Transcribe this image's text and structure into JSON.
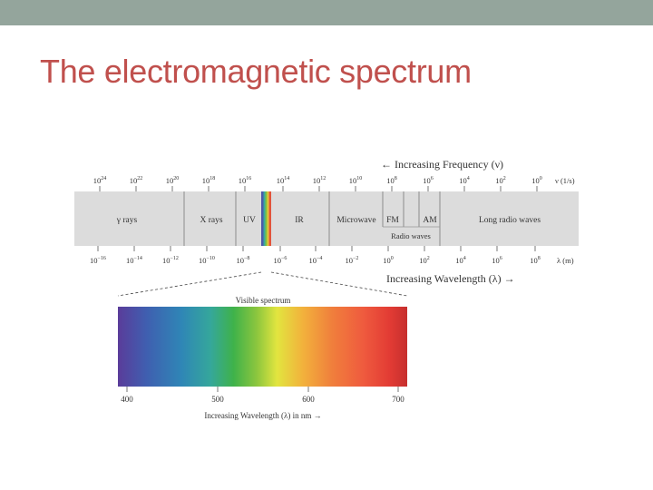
{
  "colors": {
    "topbar": "#94a59c",
    "title": "#c0504d",
    "band": "#dcdcdc",
    "spectrum_stops": [
      "#5a3c9a",
      "#3f5fb0",
      "#2f86b6",
      "#35a79b",
      "#3fb24a",
      "#8cc63e",
      "#e2e53f",
      "#f2b13c",
      "#f07f3c",
      "#ef5a3e",
      "#e23b34",
      "#c62f2e"
    ]
  },
  "slide": {
    "title": "The electromagnetic spectrum"
  },
  "diagram": {
    "frequency_label": "← Increasing Frequency (ν)",
    "wavelength_label": "Increasing Wavelength (λ) →",
    "frequency_unit": "ν (1/s)",
    "wavelength_unit": "λ (m)",
    "frequency_ticks": [
      {
        "base": "10",
        "exp": "24"
      },
      {
        "base": "10",
        "exp": "22"
      },
      {
        "base": "10",
        "exp": "20"
      },
      {
        "base": "10",
        "exp": "18"
      },
      {
        "base": "10",
        "exp": "16"
      },
      {
        "base": "10",
        "exp": "14"
      },
      {
        "base": "10",
        "exp": "12"
      },
      {
        "base": "10",
        "exp": "10"
      },
      {
        "base": "10",
        "exp": "8"
      },
      {
        "base": "10",
        "exp": "6"
      },
      {
        "base": "10",
        "exp": "4"
      },
      {
        "base": "10",
        "exp": "2"
      },
      {
        "base": "10",
        "exp": "0"
      }
    ],
    "wavelength_ticks": [
      {
        "base": "10",
        "exp": "−16"
      },
      {
        "base": "10",
        "exp": "−14"
      },
      {
        "base": "10",
        "exp": "−12"
      },
      {
        "base": "10",
        "exp": "−10"
      },
      {
        "base": "10",
        "exp": "−8"
      },
      {
        "base": "10",
        "exp": "−6"
      },
      {
        "base": "10",
        "exp": "−4"
      },
      {
        "base": "10",
        "exp": "−2"
      },
      {
        "base": "10",
        "exp": "0"
      },
      {
        "base": "10",
        "exp": "2"
      },
      {
        "base": "10",
        "exp": "4"
      },
      {
        "base": "10",
        "exp": "6"
      },
      {
        "base": "10",
        "exp": "8"
      }
    ],
    "regions": {
      "gamma": "γ rays",
      "xray": "X rays",
      "uv": "UV",
      "ir": "IR",
      "microwave": "Microwave",
      "fm": "FM",
      "am": "AM",
      "long_radio": "Long radio waves",
      "radio_waves": "Radio waves"
    },
    "visible": {
      "title": "Visible spectrum",
      "ticks": [
        "400",
        "500",
        "600",
        "700"
      ],
      "axis_label": "Increasing Wavelength (λ) in nm →"
    }
  }
}
